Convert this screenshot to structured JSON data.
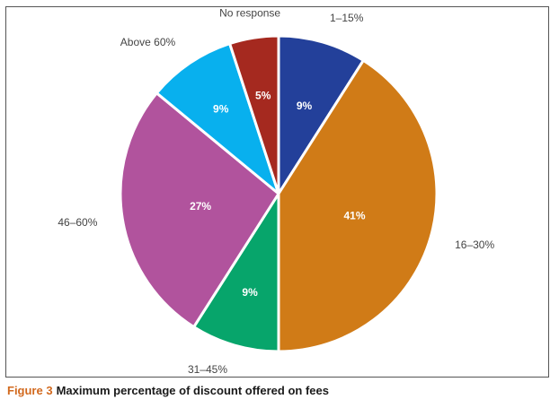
{
  "chart_data": {
    "type": "pie",
    "slices": [
      {
        "label": "1–15%",
        "value": 9,
        "value_label": "9%",
        "color": "#23409a"
      },
      {
        "label": "16–30%",
        "value": 41,
        "value_label": "41%",
        "color": "#d07b17"
      },
      {
        "label": "31–45%",
        "value": 9,
        "value_label": "9%",
        "color": "#07a56b"
      },
      {
        "label": "46–60%",
        "value": 27,
        "value_label": "27%",
        "color": "#b1539d"
      },
      {
        "label": "Above 60%",
        "value": 9,
        "value_label": "9%",
        "color": "#08b0ee"
      },
      {
        "label": "No response",
        "value": 5,
        "value_label": "5%",
        "color": "#a5291f"
      }
    ],
    "start": "top",
    "direction": "clockwise"
  },
  "caption": {
    "figure_label": "Figure 3",
    "text": "Maximum percentage of discount offered on fees"
  }
}
